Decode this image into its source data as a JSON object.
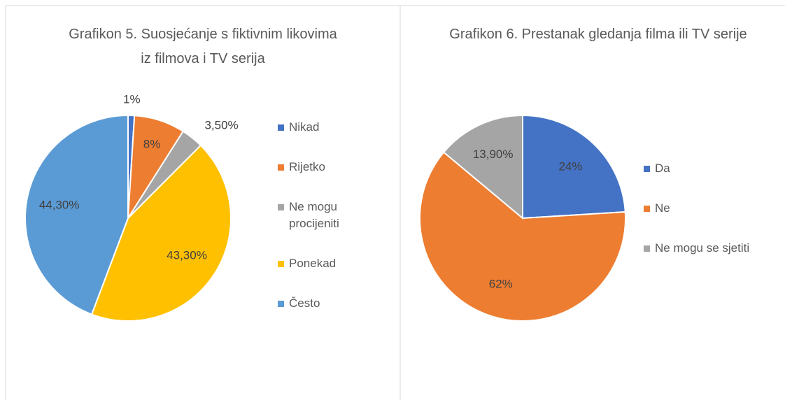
{
  "chart_data": [
    {
      "type": "pie",
      "title": "Grafikon 5. Suosjećanje s fiktivnim likovima iz filmova i TV serija",
      "categories": [
        "Nikad",
        "Rijetko",
        "Ne mogu procijeniti",
        "Ponekad",
        "Često"
      ],
      "values": [
        1,
        8,
        3.5,
        43.3,
        44.3
      ],
      "value_labels": [
        "1%",
        "8%",
        "3,50%",
        "43,30%",
        "44,30%"
      ],
      "colors": [
        "#4472c4",
        "#ed7d31",
        "#a5a5a5",
        "#ffc000",
        "#5b9bd5"
      ],
      "legend": "right"
    },
    {
      "type": "pie",
      "title": "Grafikon 6. Prestanak gledanja filma ili TV serije",
      "categories": [
        "Da",
        "Ne",
        "Ne mogu se sjetiti"
      ],
      "values": [
        24,
        62,
        13.9
      ],
      "value_labels": [
        "24%",
        "62%",
        "13,90%"
      ],
      "colors": [
        "#4472c4",
        "#ed7d31",
        "#a5a5a5"
      ],
      "legend": "right"
    }
  ]
}
